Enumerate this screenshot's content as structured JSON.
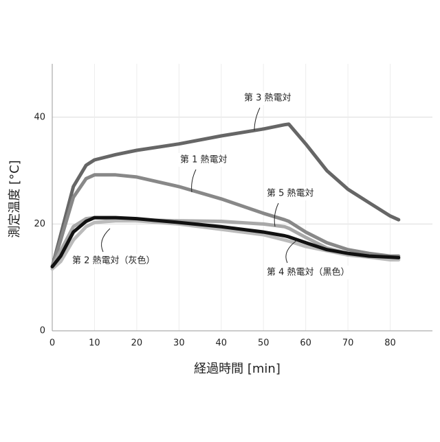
{
  "chart_data": {
    "type": "line",
    "x_label": "経過時間 [min]",
    "y_label": "測定温度 [°C]",
    "x": [
      0,
      2,
      5,
      8,
      10,
      15,
      20,
      30,
      40,
      50,
      55,
      56,
      60,
      65,
      70,
      75,
      80,
      82
    ],
    "series": [
      {
        "name": "第 1 熱電対",
        "color": "#888888",
        "values": [
          12,
          17,
          25,
          28.5,
          29.2,
          29.2,
          28.8,
          27,
          24.7,
          22,
          20.8,
          20.5,
          18.5,
          16.5,
          15.2,
          14.5,
          14,
          14
        ]
      },
      {
        "name": "第 2 熱電対（灰色）",
        "color": "#bbbbbb",
        "values": [
          11.6,
          13,
          17,
          19.5,
          20.3,
          20.6,
          20.6,
          20,
          19,
          18,
          17,
          16.8,
          15.8,
          15,
          14.2,
          13.8,
          13.3,
          13.3
        ]
      },
      {
        "name": "第 3 熱電対",
        "color": "#666666",
        "values": [
          12,
          18,
          27,
          31,
          32,
          33,
          33.8,
          35,
          36.5,
          37.8,
          38.6,
          38.7,
          35,
          30,
          26.5,
          24,
          21.5,
          20.8
        ]
      },
      {
        "name": "第 4 熱電対（黒色）",
        "color": "#111111",
        "values": [
          12,
          14,
          18.5,
          20.5,
          21.2,
          21.2,
          21,
          20.3,
          19.5,
          18.5,
          17.8,
          17.6,
          16.5,
          15.2,
          14.5,
          14,
          13.8,
          13.7
        ]
      },
      {
        "name": "第 5 熱電対",
        "color": "#a8a8a8",
        "values": [
          12,
          15,
          19.5,
          21,
          21.2,
          21,
          20.8,
          20.6,
          20.5,
          20,
          19.5,
          19.2,
          17.5,
          15.5,
          14.5,
          14,
          13.6,
          13.5
        ]
      }
    ],
    "xlim": [
      0,
      90
    ],
    "ylim": [
      0,
      50
    ],
    "xticks": [
      0,
      10,
      20,
      30,
      40,
      50,
      60,
      70,
      80
    ],
    "yticks": [
      0,
      20,
      40
    ],
    "grid": true
  }
}
